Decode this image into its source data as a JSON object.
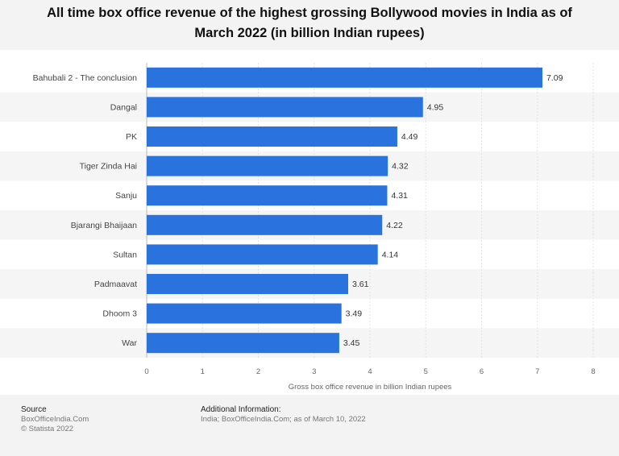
{
  "header": {
    "title": "All time box office revenue of the highest grossing Bollywood movies in India as of March 2022 (in billion Indian rupees)"
  },
  "chart_data": {
    "type": "bar",
    "orientation": "horizontal",
    "title": "All time box office revenue of the highest grossing Bollywood movies in India as of March 2022 (in billion Indian rupees)",
    "xlabel": "Gross box office revenue in billion Indian rupees",
    "ylabel": "",
    "categories": [
      "Bahubali 2 - The conclusion",
      "Dangal",
      "PK",
      "Tiger Zinda Hai",
      "Sanju",
      "Bjarangi Bhaijaan",
      "Sultan",
      "Padmaavat",
      "Dhoom 3",
      "War"
    ],
    "values": [
      7.09,
      4.95,
      4.49,
      4.32,
      4.31,
      4.22,
      4.14,
      3.61,
      3.49,
      3.45
    ],
    "value_labels": [
      "7.09",
      "4.95",
      "4.49",
      "4.32",
      "4.31",
      "4.22",
      "4.14",
      "3.61",
      "3.49",
      "3.45"
    ],
    "xlim": [
      0,
      8
    ],
    "xticks": [
      "0",
      "1",
      "2",
      "3",
      "4",
      "5",
      "6",
      "7",
      "8"
    ],
    "grid": true,
    "colors": {
      "bar": "#2a72de",
      "band": "#f5f5f5"
    }
  },
  "footer": {
    "source_title": "Source",
    "source_line1": "BoxOfficeIndia.Com",
    "source_line2": "© Statista 2022",
    "info_title": "Additional Information:",
    "info_text": "India; BoxOfficeIndia.Com; as of March 10, 2022"
  }
}
